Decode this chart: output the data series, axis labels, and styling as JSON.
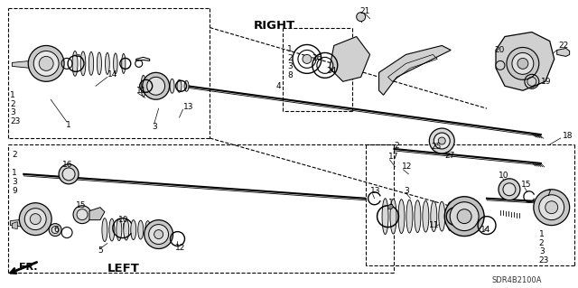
{
  "bg_color": "#ffffff",
  "fig_width": 6.4,
  "fig_height": 3.19,
  "dpi": 100,
  "label_RIGHT": "RIGHT",
  "label_LEFT": "LEFT",
  "label_FR": "FR.",
  "label_SDR": "SDR4B2100A",
  "lc": "#000000",
  "fs": 6.5,
  "fs_section": 9.5,
  "fs_sdr": 6.5
}
